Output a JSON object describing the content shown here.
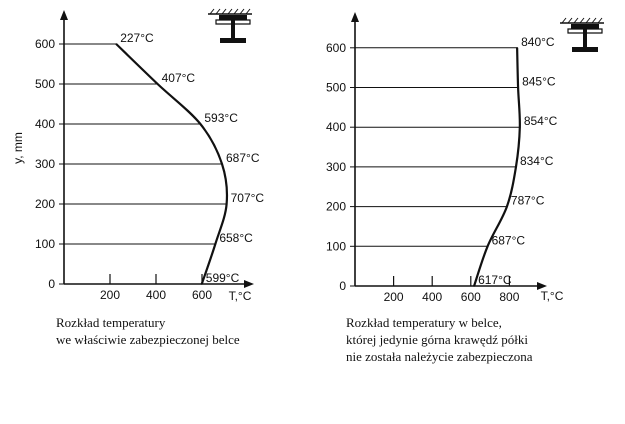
{
  "chart_data": [
    {
      "type": "line",
      "xlabel": "T,°C",
      "ylabel": "y, mm",
      "xlim": [
        0,
        800
      ],
      "ylim": [
        0,
        650
      ],
      "x_ticks": [
        "200",
        "400",
        "600"
      ],
      "y_ticks": [
        "0",
        "100",
        "200",
        "300",
        "400",
        "500",
        "600"
      ],
      "series": [
        {
          "x": [
            599,
            658,
            707,
            687,
            593,
            407,
            227
          ],
          "y": [
            0,
            100,
            200,
            300,
            400,
            500,
            600
          ]
        }
      ],
      "data_labels": [
        "599°C",
        "658°C",
        "707°C",
        "687°C",
        "593°C",
        "407°C",
        "227°C"
      ],
      "caption": [
        "Rozkład temperatury",
        "we właściwie zabezpieczonej belce"
      ],
      "icon": "i-beam-icon"
    },
    {
      "type": "line",
      "xlabel": "T,°C",
      "ylabel": "",
      "xlim": [
        0,
        900
      ],
      "ylim": [
        0,
        650
      ],
      "x_ticks": [
        "200",
        "400",
        "600",
        "800"
      ],
      "y_ticks": [
        "0",
        "100",
        "200",
        "300",
        "400",
        "500",
        "600"
      ],
      "series": [
        {
          "x": [
            617,
            687,
            787,
            834,
            854,
            845,
            840
          ],
          "y": [
            0,
            100,
            200,
            300,
            400,
            500,
            600
          ]
        }
      ],
      "data_labels": [
        "617°C",
        "687°C",
        "787°C",
        "834°C",
        "854°C",
        "845°C",
        "840°C"
      ],
      "caption": [
        "Rozkład temperatury w belce,",
        "której jedynie górna krawędź półki",
        "nie została należycie zabezpieczona"
      ],
      "icon": "i-beam-icon"
    }
  ]
}
